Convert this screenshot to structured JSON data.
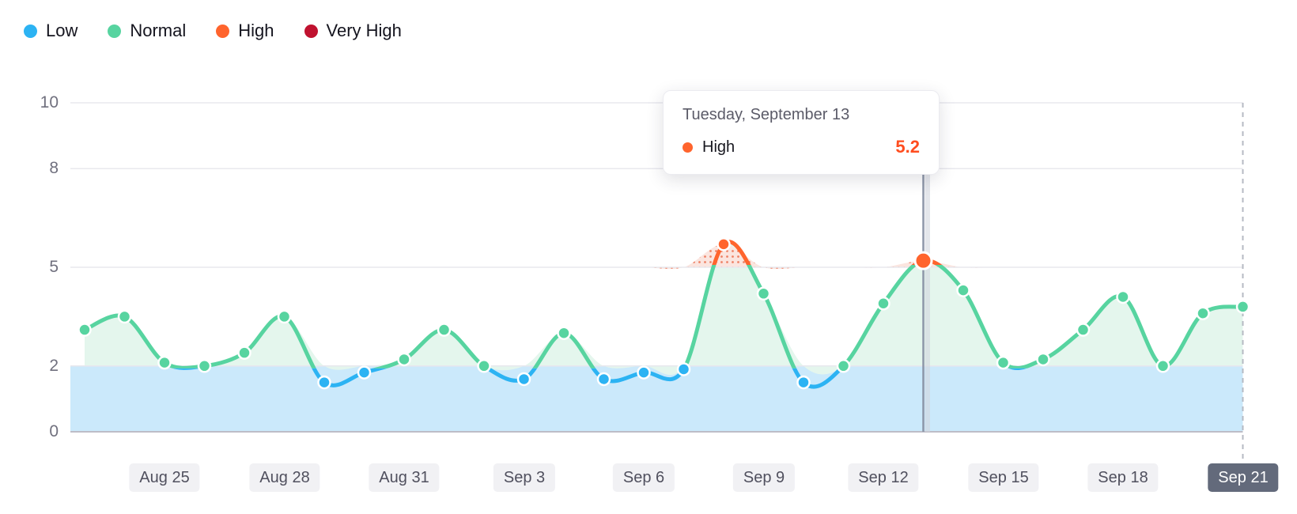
{
  "legend": {
    "items": [
      {
        "label": "Low",
        "color": "#2CB3F3"
      },
      {
        "label": "Normal",
        "color": "#57D4A0"
      },
      {
        "label": "High",
        "color": "#FF642D"
      },
      {
        "label": "Very High",
        "color": "#C0122F"
      }
    ]
  },
  "tooltip": {
    "title": "Tuesday, September 13",
    "series_label": "High",
    "value": "5.2",
    "dot_color": "#FF642D",
    "value_color": "#FF4D1F"
  },
  "colors": {
    "low": "#2CB3F3",
    "normal": "#57D4A0",
    "high": "#FF642D",
    "very_high": "#C0122F",
    "low_band_fill": "#CBE9FB",
    "normal_area_fill": "#E4F6ED",
    "high_area_fill": "#FBE5DF",
    "high_area_dot": "#EE8266",
    "grid": "#E8E8EE",
    "axis": "#BDBDC7",
    "crosshair": "#8D96A8",
    "crosshair_band": "#D2D6DD",
    "dashed_edge": "#B6BAC3"
  },
  "chart_data": {
    "type": "line",
    "title": "",
    "xlabel": "",
    "ylabel": "",
    "ylim": [
      0,
      10
    ],
    "y_ticks": [
      0,
      2,
      5,
      8,
      10
    ],
    "y_tick_labels": [
      "10",
      "8",
      "5",
      "2",
      "0"
    ],
    "x_tick_labels": [
      "Aug 25",
      "Aug 28",
      "Aug 31",
      "Sep 3",
      "Sep 6",
      "Sep 9",
      "Sep 12",
      "Sep 15",
      "Sep 18",
      "Sep 21"
    ],
    "active_x_tick": "Sep 21",
    "grid": true,
    "legend_position": "top-left",
    "thresholds": {
      "low_max": 2,
      "normal_max": 5
    },
    "selected_point": {
      "date": "Sep 13",
      "value": 5.2,
      "status": "high"
    },
    "points": [
      {
        "date": "Aug 23",
        "value": 3.1,
        "status": "normal"
      },
      {
        "date": "Aug 24",
        "value": 3.5,
        "status": "normal"
      },
      {
        "date": "Aug 25",
        "value": 2.1,
        "status": "normal"
      },
      {
        "date": "Aug 26",
        "value": 2.0,
        "status": "normal"
      },
      {
        "date": "Aug 27",
        "value": 2.4,
        "status": "normal"
      },
      {
        "date": "Aug 28",
        "value": 3.5,
        "status": "normal"
      },
      {
        "date": "Aug 29",
        "value": 1.5,
        "status": "low"
      },
      {
        "date": "Aug 30",
        "value": 1.8,
        "status": "low"
      },
      {
        "date": "Aug 31",
        "value": 2.2,
        "status": "normal"
      },
      {
        "date": "Sep 1",
        "value": 3.1,
        "status": "normal"
      },
      {
        "date": "Sep 2",
        "value": 2.0,
        "status": "normal"
      },
      {
        "date": "Sep 3",
        "value": 1.6,
        "status": "low"
      },
      {
        "date": "Sep 4",
        "value": 3.0,
        "status": "normal"
      },
      {
        "date": "Sep 5",
        "value": 1.6,
        "status": "low"
      },
      {
        "date": "Sep 6",
        "value": 1.8,
        "status": "low"
      },
      {
        "date": "Sep 7",
        "value": 1.9,
        "status": "low"
      },
      {
        "date": "Sep 8",
        "value": 5.7,
        "status": "high"
      },
      {
        "date": "Sep 9",
        "value": 4.2,
        "status": "normal"
      },
      {
        "date": "Sep 10",
        "value": 1.5,
        "status": "low"
      },
      {
        "date": "Sep 11",
        "value": 2.0,
        "status": "normal"
      },
      {
        "date": "Sep 12",
        "value": 3.9,
        "status": "normal"
      },
      {
        "date": "Sep 13",
        "value": 5.2,
        "status": "high"
      },
      {
        "date": "Sep 14",
        "value": 4.3,
        "status": "normal"
      },
      {
        "date": "Sep 15",
        "value": 2.1,
        "status": "normal"
      },
      {
        "date": "Sep 16",
        "value": 2.2,
        "status": "normal"
      },
      {
        "date": "Sep 17",
        "value": 3.1,
        "status": "normal"
      },
      {
        "date": "Sep 18",
        "value": 4.1,
        "status": "normal"
      },
      {
        "date": "Sep 19",
        "value": 2.0,
        "status": "normal"
      },
      {
        "date": "Sep 20",
        "value": 3.6,
        "status": "normal"
      },
      {
        "date": "Sep 21",
        "value": 3.8,
        "status": "normal"
      }
    ]
  }
}
